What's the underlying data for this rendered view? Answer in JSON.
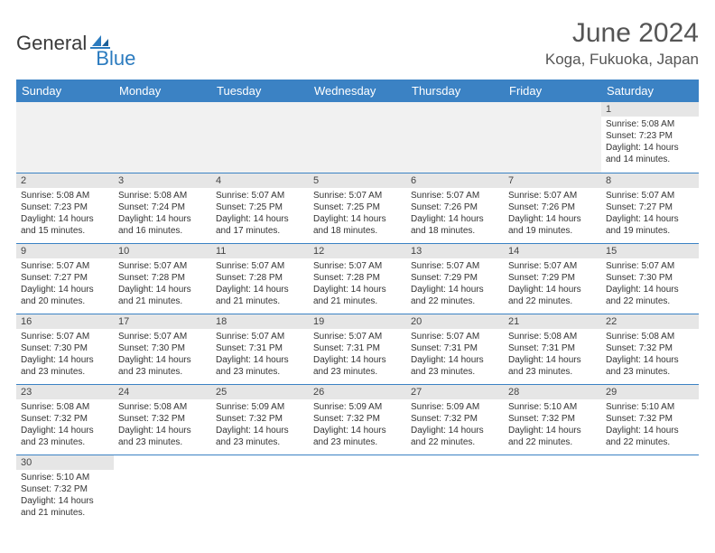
{
  "logo": {
    "textDark": "General",
    "textBlue": "Blue"
  },
  "header": {
    "monthTitle": "June 2024",
    "location": "Koga, Fukuoka, Japan"
  },
  "colors": {
    "headerBg": "#3b82c4",
    "dayNumBg": "#e6e6e6",
    "border": "#3b82c4",
    "logoBlue": "#2b7bbf"
  },
  "dayLabels": [
    "Sunday",
    "Monday",
    "Tuesday",
    "Wednesday",
    "Thursday",
    "Friday",
    "Saturday"
  ],
  "weeks": [
    [
      null,
      null,
      null,
      null,
      null,
      null,
      {
        "n": "1",
        "sr": "Sunrise: 5:08 AM",
        "ss": "Sunset: 7:23 PM",
        "dl1": "Daylight: 14 hours",
        "dl2": "and 14 minutes."
      }
    ],
    [
      {
        "n": "2",
        "sr": "Sunrise: 5:08 AM",
        "ss": "Sunset: 7:23 PM",
        "dl1": "Daylight: 14 hours",
        "dl2": "and 15 minutes."
      },
      {
        "n": "3",
        "sr": "Sunrise: 5:08 AM",
        "ss": "Sunset: 7:24 PM",
        "dl1": "Daylight: 14 hours",
        "dl2": "and 16 minutes."
      },
      {
        "n": "4",
        "sr": "Sunrise: 5:07 AM",
        "ss": "Sunset: 7:25 PM",
        "dl1": "Daylight: 14 hours",
        "dl2": "and 17 minutes."
      },
      {
        "n": "5",
        "sr": "Sunrise: 5:07 AM",
        "ss": "Sunset: 7:25 PM",
        "dl1": "Daylight: 14 hours",
        "dl2": "and 18 minutes."
      },
      {
        "n": "6",
        "sr": "Sunrise: 5:07 AM",
        "ss": "Sunset: 7:26 PM",
        "dl1": "Daylight: 14 hours",
        "dl2": "and 18 minutes."
      },
      {
        "n": "7",
        "sr": "Sunrise: 5:07 AM",
        "ss": "Sunset: 7:26 PM",
        "dl1": "Daylight: 14 hours",
        "dl2": "and 19 minutes."
      },
      {
        "n": "8",
        "sr": "Sunrise: 5:07 AM",
        "ss": "Sunset: 7:27 PM",
        "dl1": "Daylight: 14 hours",
        "dl2": "and 19 minutes."
      }
    ],
    [
      {
        "n": "9",
        "sr": "Sunrise: 5:07 AM",
        "ss": "Sunset: 7:27 PM",
        "dl1": "Daylight: 14 hours",
        "dl2": "and 20 minutes."
      },
      {
        "n": "10",
        "sr": "Sunrise: 5:07 AM",
        "ss": "Sunset: 7:28 PM",
        "dl1": "Daylight: 14 hours",
        "dl2": "and 21 minutes."
      },
      {
        "n": "11",
        "sr": "Sunrise: 5:07 AM",
        "ss": "Sunset: 7:28 PM",
        "dl1": "Daylight: 14 hours",
        "dl2": "and 21 minutes."
      },
      {
        "n": "12",
        "sr": "Sunrise: 5:07 AM",
        "ss": "Sunset: 7:28 PM",
        "dl1": "Daylight: 14 hours",
        "dl2": "and 21 minutes."
      },
      {
        "n": "13",
        "sr": "Sunrise: 5:07 AM",
        "ss": "Sunset: 7:29 PM",
        "dl1": "Daylight: 14 hours",
        "dl2": "and 22 minutes."
      },
      {
        "n": "14",
        "sr": "Sunrise: 5:07 AM",
        "ss": "Sunset: 7:29 PM",
        "dl1": "Daylight: 14 hours",
        "dl2": "and 22 minutes."
      },
      {
        "n": "15",
        "sr": "Sunrise: 5:07 AM",
        "ss": "Sunset: 7:30 PM",
        "dl1": "Daylight: 14 hours",
        "dl2": "and 22 minutes."
      }
    ],
    [
      {
        "n": "16",
        "sr": "Sunrise: 5:07 AM",
        "ss": "Sunset: 7:30 PM",
        "dl1": "Daylight: 14 hours",
        "dl2": "and 23 minutes."
      },
      {
        "n": "17",
        "sr": "Sunrise: 5:07 AM",
        "ss": "Sunset: 7:30 PM",
        "dl1": "Daylight: 14 hours",
        "dl2": "and 23 minutes."
      },
      {
        "n": "18",
        "sr": "Sunrise: 5:07 AM",
        "ss": "Sunset: 7:31 PM",
        "dl1": "Daylight: 14 hours",
        "dl2": "and 23 minutes."
      },
      {
        "n": "19",
        "sr": "Sunrise: 5:07 AM",
        "ss": "Sunset: 7:31 PM",
        "dl1": "Daylight: 14 hours",
        "dl2": "and 23 minutes."
      },
      {
        "n": "20",
        "sr": "Sunrise: 5:07 AM",
        "ss": "Sunset: 7:31 PM",
        "dl1": "Daylight: 14 hours",
        "dl2": "and 23 minutes."
      },
      {
        "n": "21",
        "sr": "Sunrise: 5:08 AM",
        "ss": "Sunset: 7:31 PM",
        "dl1": "Daylight: 14 hours",
        "dl2": "and 23 minutes."
      },
      {
        "n": "22",
        "sr": "Sunrise: 5:08 AM",
        "ss": "Sunset: 7:32 PM",
        "dl1": "Daylight: 14 hours",
        "dl2": "and 23 minutes."
      }
    ],
    [
      {
        "n": "23",
        "sr": "Sunrise: 5:08 AM",
        "ss": "Sunset: 7:32 PM",
        "dl1": "Daylight: 14 hours",
        "dl2": "and 23 minutes."
      },
      {
        "n": "24",
        "sr": "Sunrise: 5:08 AM",
        "ss": "Sunset: 7:32 PM",
        "dl1": "Daylight: 14 hours",
        "dl2": "and 23 minutes."
      },
      {
        "n": "25",
        "sr": "Sunrise: 5:09 AM",
        "ss": "Sunset: 7:32 PM",
        "dl1": "Daylight: 14 hours",
        "dl2": "and 23 minutes."
      },
      {
        "n": "26",
        "sr": "Sunrise: 5:09 AM",
        "ss": "Sunset: 7:32 PM",
        "dl1": "Daylight: 14 hours",
        "dl2": "and 23 minutes."
      },
      {
        "n": "27",
        "sr": "Sunrise: 5:09 AM",
        "ss": "Sunset: 7:32 PM",
        "dl1": "Daylight: 14 hours",
        "dl2": "and 22 minutes."
      },
      {
        "n": "28",
        "sr": "Sunrise: 5:10 AM",
        "ss": "Sunset: 7:32 PM",
        "dl1": "Daylight: 14 hours",
        "dl2": "and 22 minutes."
      },
      {
        "n": "29",
        "sr": "Sunrise: 5:10 AM",
        "ss": "Sunset: 7:32 PM",
        "dl1": "Daylight: 14 hours",
        "dl2": "and 22 minutes."
      }
    ],
    [
      {
        "n": "30",
        "sr": "Sunrise: 5:10 AM",
        "ss": "Sunset: 7:32 PM",
        "dl1": "Daylight: 14 hours",
        "dl2": "and 21 minutes."
      },
      null,
      null,
      null,
      null,
      null,
      null
    ]
  ]
}
